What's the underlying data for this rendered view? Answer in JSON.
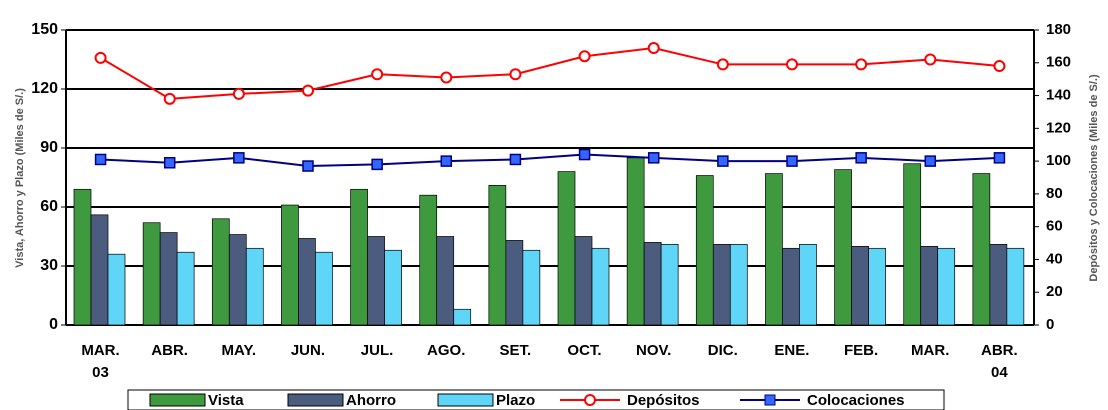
{
  "chart_data": {
    "type": "bar_line",
    "y_label": "Vista, Ahorro y Plazo (Miles de S/.)",
    "y2_label": "Depósitos y Colocaciones (Miles de S/.)",
    "categories": [
      "MAR.\n03",
      "ABR.",
      "MAY.",
      "JUN.",
      "JUL.",
      "AGO.",
      "SET.",
      "OCT.",
      "NOV.",
      "DIC.",
      "ENE.",
      "FEB.",
      "MAR.",
      "ABR.\n04"
    ],
    "ylim": [
      0,
      150
    ],
    "yticks": [
      0,
      30,
      60,
      90,
      120,
      150
    ],
    "y2lim": [
      0,
      180
    ],
    "y2ticks": [
      0,
      20,
      40,
      60,
      80,
      100,
      120,
      140,
      160,
      180
    ],
    "grid": true,
    "series": [
      {
        "name": "Vista",
        "type": "bar",
        "color": "#3f9a3f",
        "values": [
          69,
          52,
          54,
          61,
          69,
          66,
          71,
          78,
          85,
          76,
          77,
          79,
          82,
          77
        ]
      },
      {
        "name": "Ahorro",
        "type": "bar",
        "color": "#4c5c7e",
        "values": [
          56,
          47,
          46,
          44,
          45,
          45,
          43,
          45,
          42,
          41,
          39,
          40,
          40,
          41
        ]
      },
      {
        "name": "Plazo",
        "type": "bar",
        "color": "#5fd5f7",
        "values": [
          36,
          37,
          39,
          37,
          38,
          8,
          38,
          39,
          41,
          41,
          41,
          39,
          39,
          39
        ]
      },
      {
        "name": "Depósitos",
        "type": "line",
        "axis": "y2",
        "color": "#ff0000",
        "marker": "circle",
        "values": [
          163,
          138,
          141,
          143,
          153,
          151,
          153,
          164,
          169,
          159,
          159,
          159,
          162,
          158
        ]
      },
      {
        "name": "Colocaciones",
        "type": "line",
        "axis": "y2",
        "color": "#000080",
        "marker_color": "#3366ff",
        "marker": "square",
        "values": [
          101,
          99,
          102,
          97,
          98,
          100,
          101,
          104,
          102,
          100,
          100,
          102,
          100,
          102
        ]
      }
    ]
  }
}
